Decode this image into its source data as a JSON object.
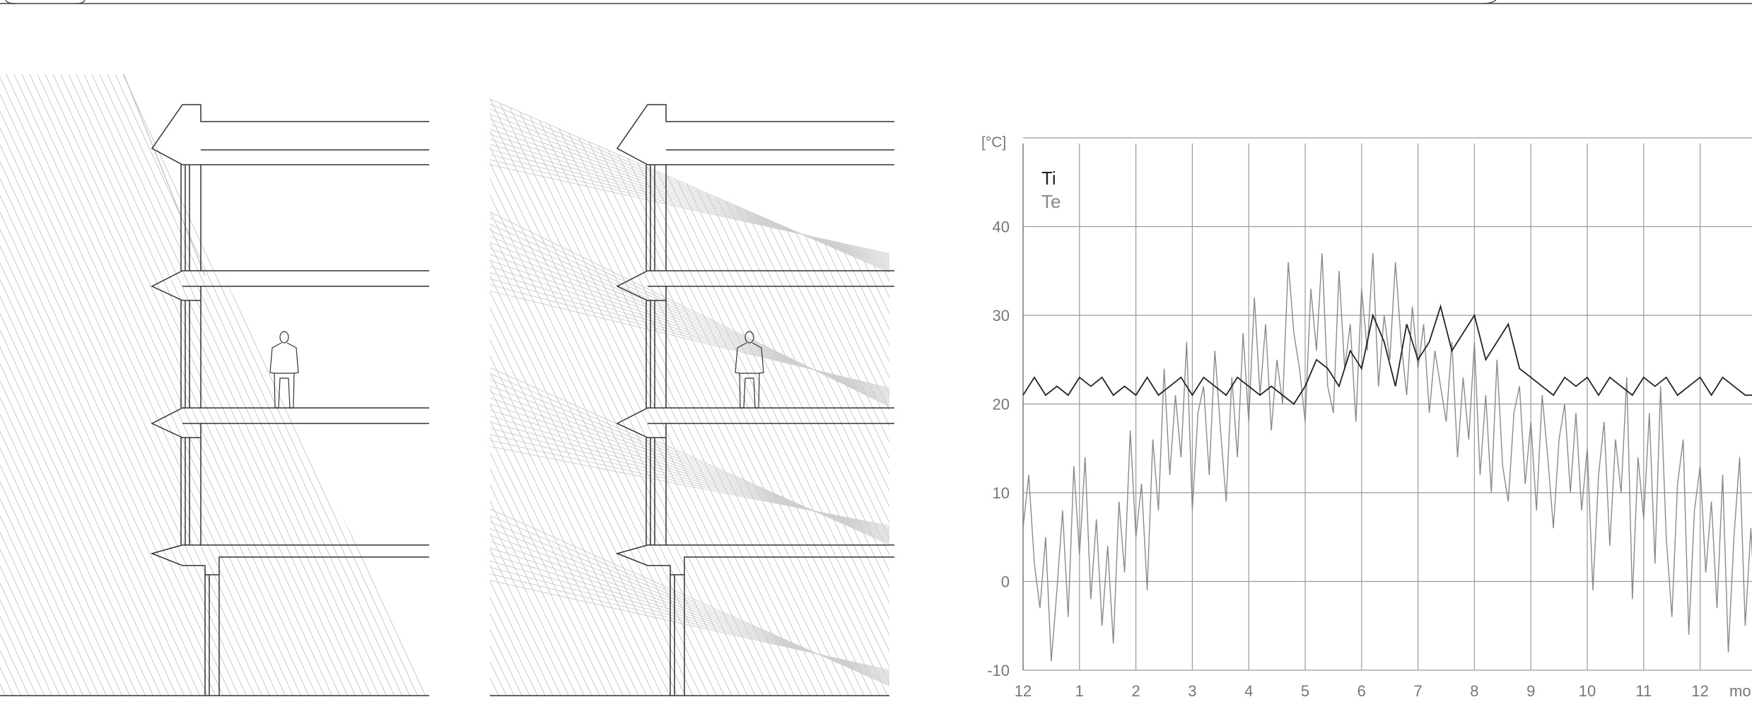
{
  "figure": {
    "panels": [
      "section-summer-sun",
      "section-winter-sun",
      "temperature-chart"
    ]
  },
  "chart_data": {
    "type": "line",
    "ylabel": "[°C]",
    "xlabel": "mo",
    "ylim": [
      -10,
      50
    ],
    "xlim": [
      0,
      13
    ],
    "yticks": [
      -10,
      0,
      10,
      20,
      30,
      40
    ],
    "x_tick_labels": [
      "12",
      "1",
      "2",
      "3",
      "4",
      "5",
      "6",
      "7",
      "8",
      "9",
      "10",
      "11",
      "12"
    ],
    "grid": true,
    "legend_position": "top-left",
    "series": [
      {
        "name": "Ti",
        "color": "#222222",
        "x": [
          0.0,
          0.2,
          0.4,
          0.6,
          0.8,
          1.0,
          1.2,
          1.4,
          1.6,
          1.8,
          2.0,
          2.2,
          2.4,
          2.6,
          2.8,
          3.0,
          3.2,
          3.4,
          3.6,
          3.8,
          4.0,
          4.2,
          4.4,
          4.6,
          4.8,
          5.0,
          5.2,
          5.4,
          5.6,
          5.8,
          6.0,
          6.2,
          6.4,
          6.6,
          6.8,
          7.0,
          7.2,
          7.4,
          7.6,
          7.8,
          8.0,
          8.2,
          8.4,
          8.6,
          8.8,
          9.0,
          9.2,
          9.4,
          9.6,
          9.8,
          10.0,
          10.2,
          10.4,
          10.6,
          10.8,
          11.0,
          11.2,
          11.4,
          11.6,
          11.8,
          12.0,
          12.2,
          12.4,
          12.6,
          12.8,
          13.0
        ],
        "values": [
          21,
          23,
          21,
          22,
          21,
          23,
          22,
          23,
          21,
          22,
          21,
          23,
          21,
          22,
          23,
          21,
          23,
          22,
          21,
          23,
          22,
          21,
          22,
          21,
          20,
          22,
          25,
          24,
          22,
          26,
          24,
          30,
          27,
          22,
          29,
          25,
          27,
          31,
          26,
          28,
          30,
          25,
          27,
          29,
          24,
          23,
          22,
          21,
          23,
          22,
          23,
          21,
          23,
          22,
          21,
          23,
          22,
          23,
          21,
          22,
          23,
          21,
          23,
          22,
          21,
          21
        ]
      },
      {
        "name": "Te",
        "color": "#8a8a8a",
        "x": [
          0.0,
          0.1,
          0.2,
          0.3,
          0.4,
          0.5,
          0.6,
          0.7,
          0.8,
          0.9,
          1.0,
          1.1,
          1.2,
          1.3,
          1.4,
          1.5,
          1.6,
          1.7,
          1.8,
          1.9,
          2.0,
          2.1,
          2.2,
          2.3,
          2.4,
          2.5,
          2.6,
          2.7,
          2.8,
          2.9,
          3.0,
          3.1,
          3.2,
          3.3,
          3.4,
          3.5,
          3.6,
          3.7,
          3.8,
          3.9,
          4.0,
          4.1,
          4.2,
          4.3,
          4.4,
          4.5,
          4.6,
          4.7,
          4.8,
          4.9,
          5.0,
          5.1,
          5.2,
          5.3,
          5.4,
          5.5,
          5.6,
          5.7,
          5.8,
          5.9,
          6.0,
          6.1,
          6.2,
          6.3,
          6.4,
          6.5,
          6.6,
          6.7,
          6.8,
          6.9,
          7.0,
          7.1,
          7.2,
          7.3,
          7.4,
          7.5,
          7.6,
          7.7,
          7.8,
          7.9,
          8.0,
          8.1,
          8.2,
          8.3,
          8.4,
          8.5,
          8.6,
          8.7,
          8.8,
          8.9,
          9.0,
          9.1,
          9.2,
          9.3,
          9.4,
          9.5,
          9.6,
          9.7,
          9.8,
          9.9,
          10.0,
          10.1,
          10.2,
          10.3,
          10.4,
          10.5,
          10.6,
          10.7,
          10.8,
          10.9,
          11.0,
          11.1,
          11.2,
          11.3,
          11.4,
          11.5,
          11.6,
          11.7,
          11.8,
          11.9,
          12.0,
          12.1,
          12.2,
          12.3,
          12.4,
          12.5,
          12.6,
          12.7,
          12.8,
          12.9,
          13.0
        ],
        "values": [
          6,
          12,
          2,
          -3,
          5,
          -9,
          -1,
          8,
          -4,
          13,
          3,
          14,
          -2,
          7,
          -5,
          4,
          -7,
          9,
          1,
          17,
          5,
          11,
          -1,
          16,
          8,
          24,
          12,
          21,
          14,
          27,
          8,
          19,
          22,
          12,
          26,
          17,
          9,
          23,
          14,
          28,
          18,
          32,
          21,
          29,
          17,
          25,
          20,
          36,
          28,
          24,
          18,
          33,
          26,
          37,
          22,
          19,
          35,
          24,
          29,
          18,
          33,
          26,
          37,
          22,
          30,
          25,
          36,
          27,
          21,
          31,
          24,
          29,
          19,
          26,
          22,
          18,
          27,
          14,
          23,
          16,
          27,
          12,
          21,
          10,
          25,
          13,
          9,
          19,
          22,
          11,
          18,
          8,
          21,
          14,
          6,
          16,
          20,
          10,
          19,
          8,
          15,
          -1,
          12,
          18,
          4,
          16,
          10,
          23,
          -2,
          14,
          7,
          19,
          2,
          22,
          5,
          -4,
          11,
          16,
          -6,
          8,
          13,
          1,
          9,
          -3,
          12,
          -8,
          5,
          14,
          -5,
          6,
          -6
        ]
      }
    ]
  },
  "legend": {
    "ti_label": "Ti",
    "te_label": "Te"
  },
  "axis_labels": {
    "y_unit": "[°C]",
    "x_unit": "mo"
  }
}
